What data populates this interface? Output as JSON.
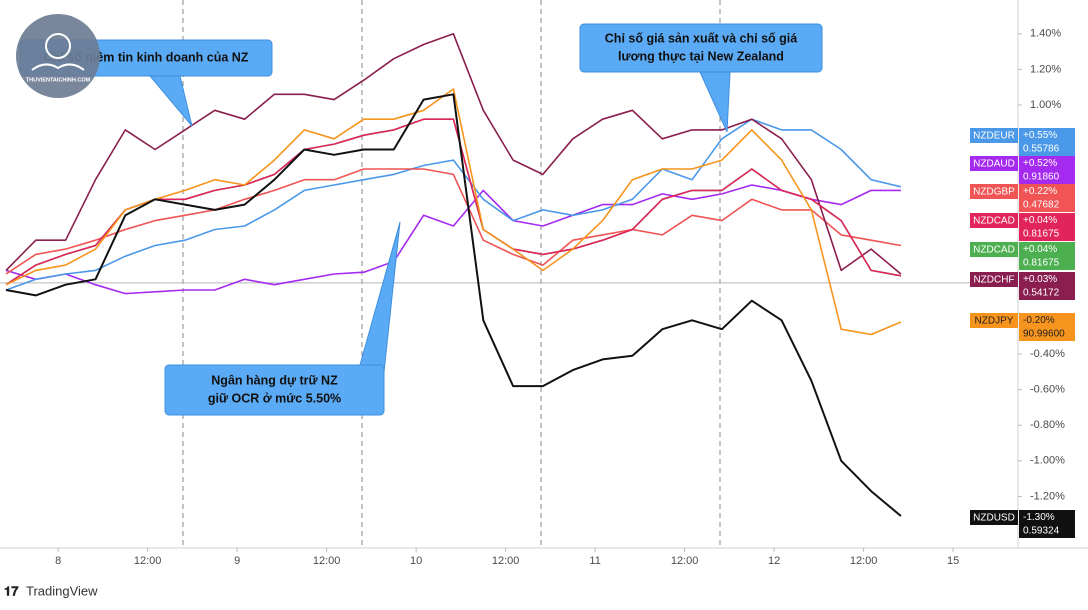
{
  "chart_data": {
    "type": "line",
    "x": [
      -7,
      -3,
      1,
      5,
      9,
      13,
      17,
      21,
      25,
      29,
      33,
      37,
      41,
      45,
      49,
      53,
      57,
      61,
      65,
      69,
      73,
      77,
      81,
      85,
      89,
      93,
      97,
      101,
      105,
      109,
      113
    ],
    "xlim": [
      -7.8,
      128.7
    ],
    "xticks": [
      {
        "value": 0,
        "label": "8"
      },
      {
        "value": 12,
        "label": "12:00"
      },
      {
        "value": 24,
        "label": "9"
      },
      {
        "value": 36,
        "label": "12:00"
      },
      {
        "value": 48,
        "label": "10"
      },
      {
        "value": 60,
        "label": "12:00"
      },
      {
        "value": 72,
        "label": "11"
      },
      {
        "value": 84,
        "label": "12:00"
      },
      {
        "value": 96,
        "label": "12"
      },
      {
        "value": 108,
        "label": "12:00"
      },
      {
        "value": 120,
        "label": "15"
      }
    ],
    "ylim": [
      -1.49,
      1.59
    ],
    "yticks": [
      {
        "value": 1.4,
        "label": "1.40%"
      },
      {
        "value": 1.2,
        "label": "1.20%"
      },
      {
        "value": 1.0,
        "label": "1.00%"
      },
      {
        "value": -0.4,
        "label": "-0.40%"
      },
      {
        "value": -0.6,
        "label": "-0.60%"
      },
      {
        "value": -0.8,
        "label": "-0.80%"
      },
      {
        "value": -1.0,
        "label": "-1.00%"
      },
      {
        "value": -1.2,
        "label": "-1.20%"
      }
    ],
    "series": [
      {
        "name": "NZDEUR",
        "color": "#4a98e8",
        "change_label": "+0.55%",
        "price": "0.55786",
        "values": [
          -0.04,
          0.02,
          0.05,
          0.07,
          0.15,
          0.21,
          0.24,
          0.3,
          0.32,
          0.41,
          0.52,
          0.55,
          0.58,
          0.61,
          0.66,
          0.69,
          0.47,
          0.35,
          0.41,
          0.38,
          0.41,
          0.47,
          0.64,
          0.58,
          0.81,
          0.92,
          0.86,
          0.86,
          0.75,
          0.58,
          0.54
        ]
      },
      {
        "name": "NZDAUD",
        "color": "#a52af0",
        "change_label": "+0.52%",
        "price": "0.91860",
        "values": [
          0.07,
          0.02,
          0.05,
          -0.01,
          -0.06,
          -0.05,
          -0.04,
          -0.04,
          0.02,
          -0.01,
          0.02,
          0.05,
          0.06,
          0.12,
          0.38,
          0.32,
          0.52,
          0.35,
          0.32,
          0.38,
          0.44,
          0.44,
          0.5,
          0.47,
          0.5,
          0.55,
          0.52,
          0.47,
          0.44,
          0.52,
          0.52
        ]
      },
      {
        "name": "NZDGBP",
        "color": "#f05454",
        "change_label": "+0.22%",
        "price": "0.47682",
        "values": [
          0.05,
          0.16,
          0.19,
          0.24,
          0.3,
          0.35,
          0.38,
          0.41,
          0.47,
          0.52,
          0.58,
          0.58,
          0.64,
          0.64,
          0.64,
          0.61,
          0.24,
          0.16,
          0.1,
          0.24,
          0.27,
          0.3,
          0.27,
          0.38,
          0.35,
          0.47,
          0.41,
          0.41,
          0.27,
          0.24,
          0.21
        ]
      },
      {
        "name": "NZDCAD",
        "color": "#e2245c",
        "change_label": "+0.04%",
        "price": "0.81675",
        "values": [
          -0.01,
          0.1,
          0.16,
          0.21,
          0.41,
          0.47,
          0.47,
          0.52,
          0.55,
          0.61,
          0.75,
          0.78,
          0.83,
          0.86,
          0.92,
          0.92,
          0.3,
          0.19,
          0.16,
          0.19,
          0.24,
          0.3,
          0.47,
          0.52,
          0.52,
          0.64,
          0.52,
          0.47,
          0.35,
          0.07,
          0.04
        ]
      },
      {
        "name": "NZDCAD",
        "color": "#4caf50",
        "change_label": "+0.04%",
        "price": "0.81675",
        "values": [
          -0.01,
          0.1,
          0.16,
          0.21,
          0.41,
          0.47,
          0.47,
          0.52,
          0.55,
          0.61,
          0.75,
          0.78,
          0.83,
          0.86,
          0.92,
          0.92,
          0.3,
          0.19,
          0.16,
          0.19,
          0.24,
          0.3,
          0.47,
          0.52,
          0.52,
          0.64,
          0.52,
          0.47,
          0.35,
          0.07,
          0.04
        ]
      },
      {
        "name": "NZDCHF",
        "color": "#8a1e4e",
        "change_label": "+0.03%",
        "price": "0.54172",
        "values": [
          0.07,
          0.24,
          0.24,
          0.58,
          0.86,
          0.75,
          0.86,
          0.97,
          0.92,
          1.06,
          1.06,
          1.03,
          1.14,
          1.26,
          1.34,
          1.4,
          0.97,
          0.69,
          0.61,
          0.81,
          0.92,
          0.97,
          0.81,
          0.86,
          0.86,
          0.92,
          0.81,
          0.58,
          0.07,
          0.19,
          0.05
        ]
      },
      {
        "name": "NZDJPY",
        "color": "#f7941d",
        "change_label": "-0.20%",
        "price": "90.99600",
        "values": [
          -0.01,
          0.07,
          0.1,
          0.19,
          0.41,
          0.47,
          0.52,
          0.58,
          0.55,
          0.69,
          0.86,
          0.81,
          0.92,
          0.92,
          0.97,
          1.09,
          0.3,
          0.19,
          0.07,
          0.19,
          0.35,
          0.58,
          0.64,
          0.64,
          0.69,
          0.86,
          0.69,
          0.41,
          -0.26,
          -0.29,
          -0.22
        ]
      },
      {
        "name": "NZDUSD",
        "color": "#111111",
        "change_label": "-1.30%",
        "price": "0.59324",
        "values": [
          -0.04,
          -0.07,
          -0.01,
          0.02,
          0.38,
          0.47,
          0.44,
          0.41,
          0.44,
          0.58,
          0.75,
          0.72,
          0.75,
          0.75,
          1.03,
          1.06,
          -0.21,
          -0.58,
          -0.58,
          -0.49,
          -0.43,
          -0.41,
          -0.26,
          -0.21,
          -0.26,
          -0.1,
          -0.21,
          -0.55,
          -1.0,
          -1.17,
          -1.31
        ]
      }
    ],
    "annotations": [
      {
        "lines": [
          "Chỉ số niềm tin kinh doanh của NZ"
        ]
      },
      {
        "lines": [
          "Chỉ số giá sản xuất và chỉ số giá",
          "lương thực tại New Zealand"
        ]
      },
      {
        "lines": [
          "Ngân hàng dự trữ NZ",
          "giữ OCR ở mức 5.50%"
        ]
      }
    ],
    "watermark": "THUVIENTAICHINH.COM",
    "footer": "TradingView"
  }
}
